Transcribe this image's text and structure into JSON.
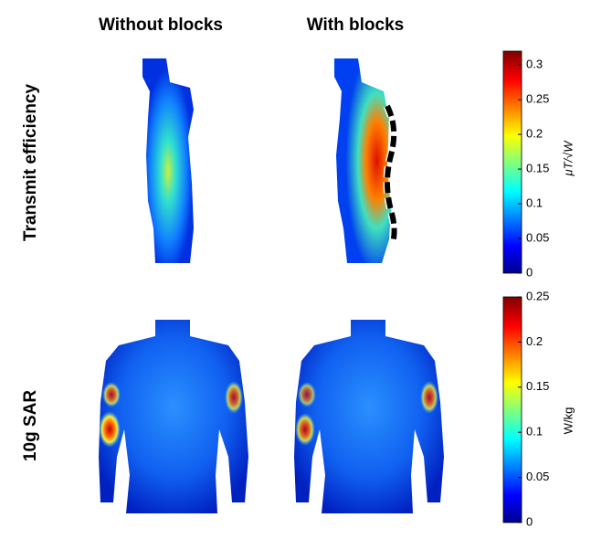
{
  "columns": [
    "Without blocks",
    "With blocks"
  ],
  "rows": [
    "Transmit efficiency",
    "10g SAR"
  ],
  "colorbars": [
    {
      "label": "μT/√W",
      "lim": [
        0,
        0.32
      ],
      "ticks": [
        0,
        0.05,
        0.1,
        0.15,
        0.2,
        0.25,
        0.3
      ]
    },
    {
      "label": "W/kg",
      "lim": [
        0,
        0.25
      ],
      "ticks": [
        0,
        0.05,
        0.1,
        0.15,
        0.2,
        0.25
      ]
    }
  ]
}
